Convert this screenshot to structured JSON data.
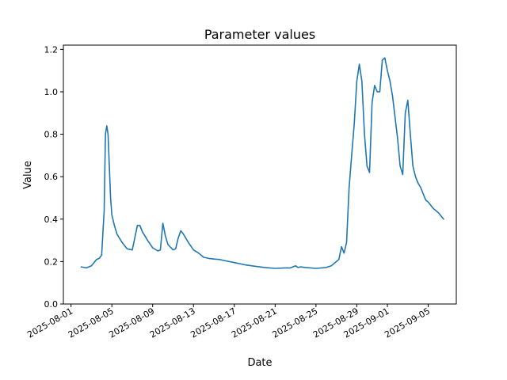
{
  "chart_data": {
    "type": "line",
    "title": "Parameter values",
    "xlabel": "Date",
    "ylabel": "Value",
    "xlim": [
      "2025-07-31 06:00",
      "2025-09-07 18:00"
    ],
    "ylim": [
      0,
      1.22
    ],
    "grid": false,
    "legend": "none",
    "x_ticks": [
      "2025-08-01",
      "2025-08-05",
      "2025-08-09",
      "2025-08-13",
      "2025-08-17",
      "2025-08-21",
      "2025-08-25",
      "2025-08-29",
      "2025-09-01",
      "2025-09-05"
    ],
    "y_ticks": [
      "0.0",
      "0.2",
      "0.4",
      "0.6",
      "0.8",
      "1.0",
      "1.2"
    ],
    "series": [
      {
        "color": "#1f77b4",
        "x": [
          "2025-08-02 00:00",
          "2025-08-02 12:00",
          "2025-08-03 00:00",
          "2025-08-03 12:00",
          "2025-08-03 18:00",
          "2025-08-04 00:00",
          "2025-08-04 06:00",
          "2025-08-04 09:00",
          "2025-08-04 12:00",
          "2025-08-04 15:00",
          "2025-08-04 18:00",
          "2025-08-04 21:00",
          "2025-08-05 00:00",
          "2025-08-05 06:00",
          "2025-08-05 12:00",
          "2025-08-06 00:00",
          "2025-08-06 12:00",
          "2025-08-07 00:00",
          "2025-08-07 12:00",
          "2025-08-07 18:00",
          "2025-08-08 00:00",
          "2025-08-08 06:00",
          "2025-08-08 12:00",
          "2025-08-09 00:00",
          "2025-08-09 12:00",
          "2025-08-09 18:00",
          "2025-08-10 00:00",
          "2025-08-10 06:00",
          "2025-08-10 12:00",
          "2025-08-11 00:00",
          "2025-08-11 06:00",
          "2025-08-11 12:00",
          "2025-08-11 18:00",
          "2025-08-12 00:00",
          "2025-08-12 12:00",
          "2025-08-13 00:00",
          "2025-08-13 12:00",
          "2025-08-14 00:00",
          "2025-08-14 12:00",
          "2025-08-15 00:00",
          "2025-08-15 12:00",
          "2025-08-16 00:00",
          "2025-08-16 12:00",
          "2025-08-17 00:00",
          "2025-08-18 00:00",
          "2025-08-19 00:00",
          "2025-08-20 00:00",
          "2025-08-21 00:00",
          "2025-08-22 00:00",
          "2025-08-22 12:00",
          "2025-08-23 00:00",
          "2025-08-23 06:00",
          "2025-08-23 12:00",
          "2025-08-24 00:00",
          "2025-08-25 00:00",
          "2025-08-26 00:00",
          "2025-08-26 12:00",
          "2025-08-27 00:00",
          "2025-08-27 06:00",
          "2025-08-27 12:00",
          "2025-08-27 18:00",
          "2025-08-28 00:00",
          "2025-08-28 06:00",
          "2025-08-28 12:00",
          "2025-08-28 18:00",
          "2025-08-29 00:00",
          "2025-08-29 06:00",
          "2025-08-29 12:00",
          "2025-08-29 18:00",
          "2025-08-30 00:00",
          "2025-08-30 06:00",
          "2025-08-30 12:00",
          "2025-08-30 18:00",
          "2025-08-31 00:00",
          "2025-08-31 06:00",
          "2025-08-31 12:00",
          "2025-08-31 18:00",
          "2025-09-01 00:00",
          "2025-09-01 06:00",
          "2025-09-01 12:00",
          "2025-09-01 18:00",
          "2025-09-02 00:00",
          "2025-09-02 06:00",
          "2025-09-02 12:00",
          "2025-09-02 18:00",
          "2025-09-03 00:00",
          "2025-09-03 06:00",
          "2025-09-03 12:00",
          "2025-09-03 18:00",
          "2025-09-04 00:00",
          "2025-09-04 06:00",
          "2025-09-04 12:00",
          "2025-09-04 18:00",
          "2025-09-05 00:00",
          "2025-09-05 12:00",
          "2025-09-06 00:00",
          "2025-09-06 12:00"
        ],
        "y": [
          0.175,
          0.17,
          0.18,
          0.21,
          0.215,
          0.23,
          0.44,
          0.8,
          0.84,
          0.8,
          0.65,
          0.5,
          0.42,
          0.37,
          0.33,
          0.29,
          0.26,
          0.255,
          0.37,
          0.37,
          0.34,
          0.32,
          0.3,
          0.265,
          0.25,
          0.255,
          0.38,
          0.32,
          0.28,
          0.255,
          0.26,
          0.31,
          0.345,
          0.33,
          0.29,
          0.255,
          0.24,
          0.22,
          0.215,
          0.212,
          0.21,
          0.205,
          0.2,
          0.195,
          0.185,
          0.178,
          0.172,
          0.168,
          0.17,
          0.17,
          0.18,
          0.172,
          0.175,
          0.172,
          0.168,
          0.172,
          0.18,
          0.2,
          0.21,
          0.27,
          0.24,
          0.29,
          0.55,
          0.7,
          0.85,
          1.05,
          1.13,
          1.05,
          0.8,
          0.65,
          0.62,
          0.95,
          1.03,
          1.0,
          1.0,
          1.15,
          1.16,
          1.1,
          1.05,
          0.98,
          0.88,
          0.78,
          0.65,
          0.61,
          0.9,
          0.96,
          0.8,
          0.65,
          0.6,
          0.57,
          0.55,
          0.52,
          0.49,
          0.48,
          0.45,
          0.43,
          0.4
        ]
      }
    ]
  }
}
